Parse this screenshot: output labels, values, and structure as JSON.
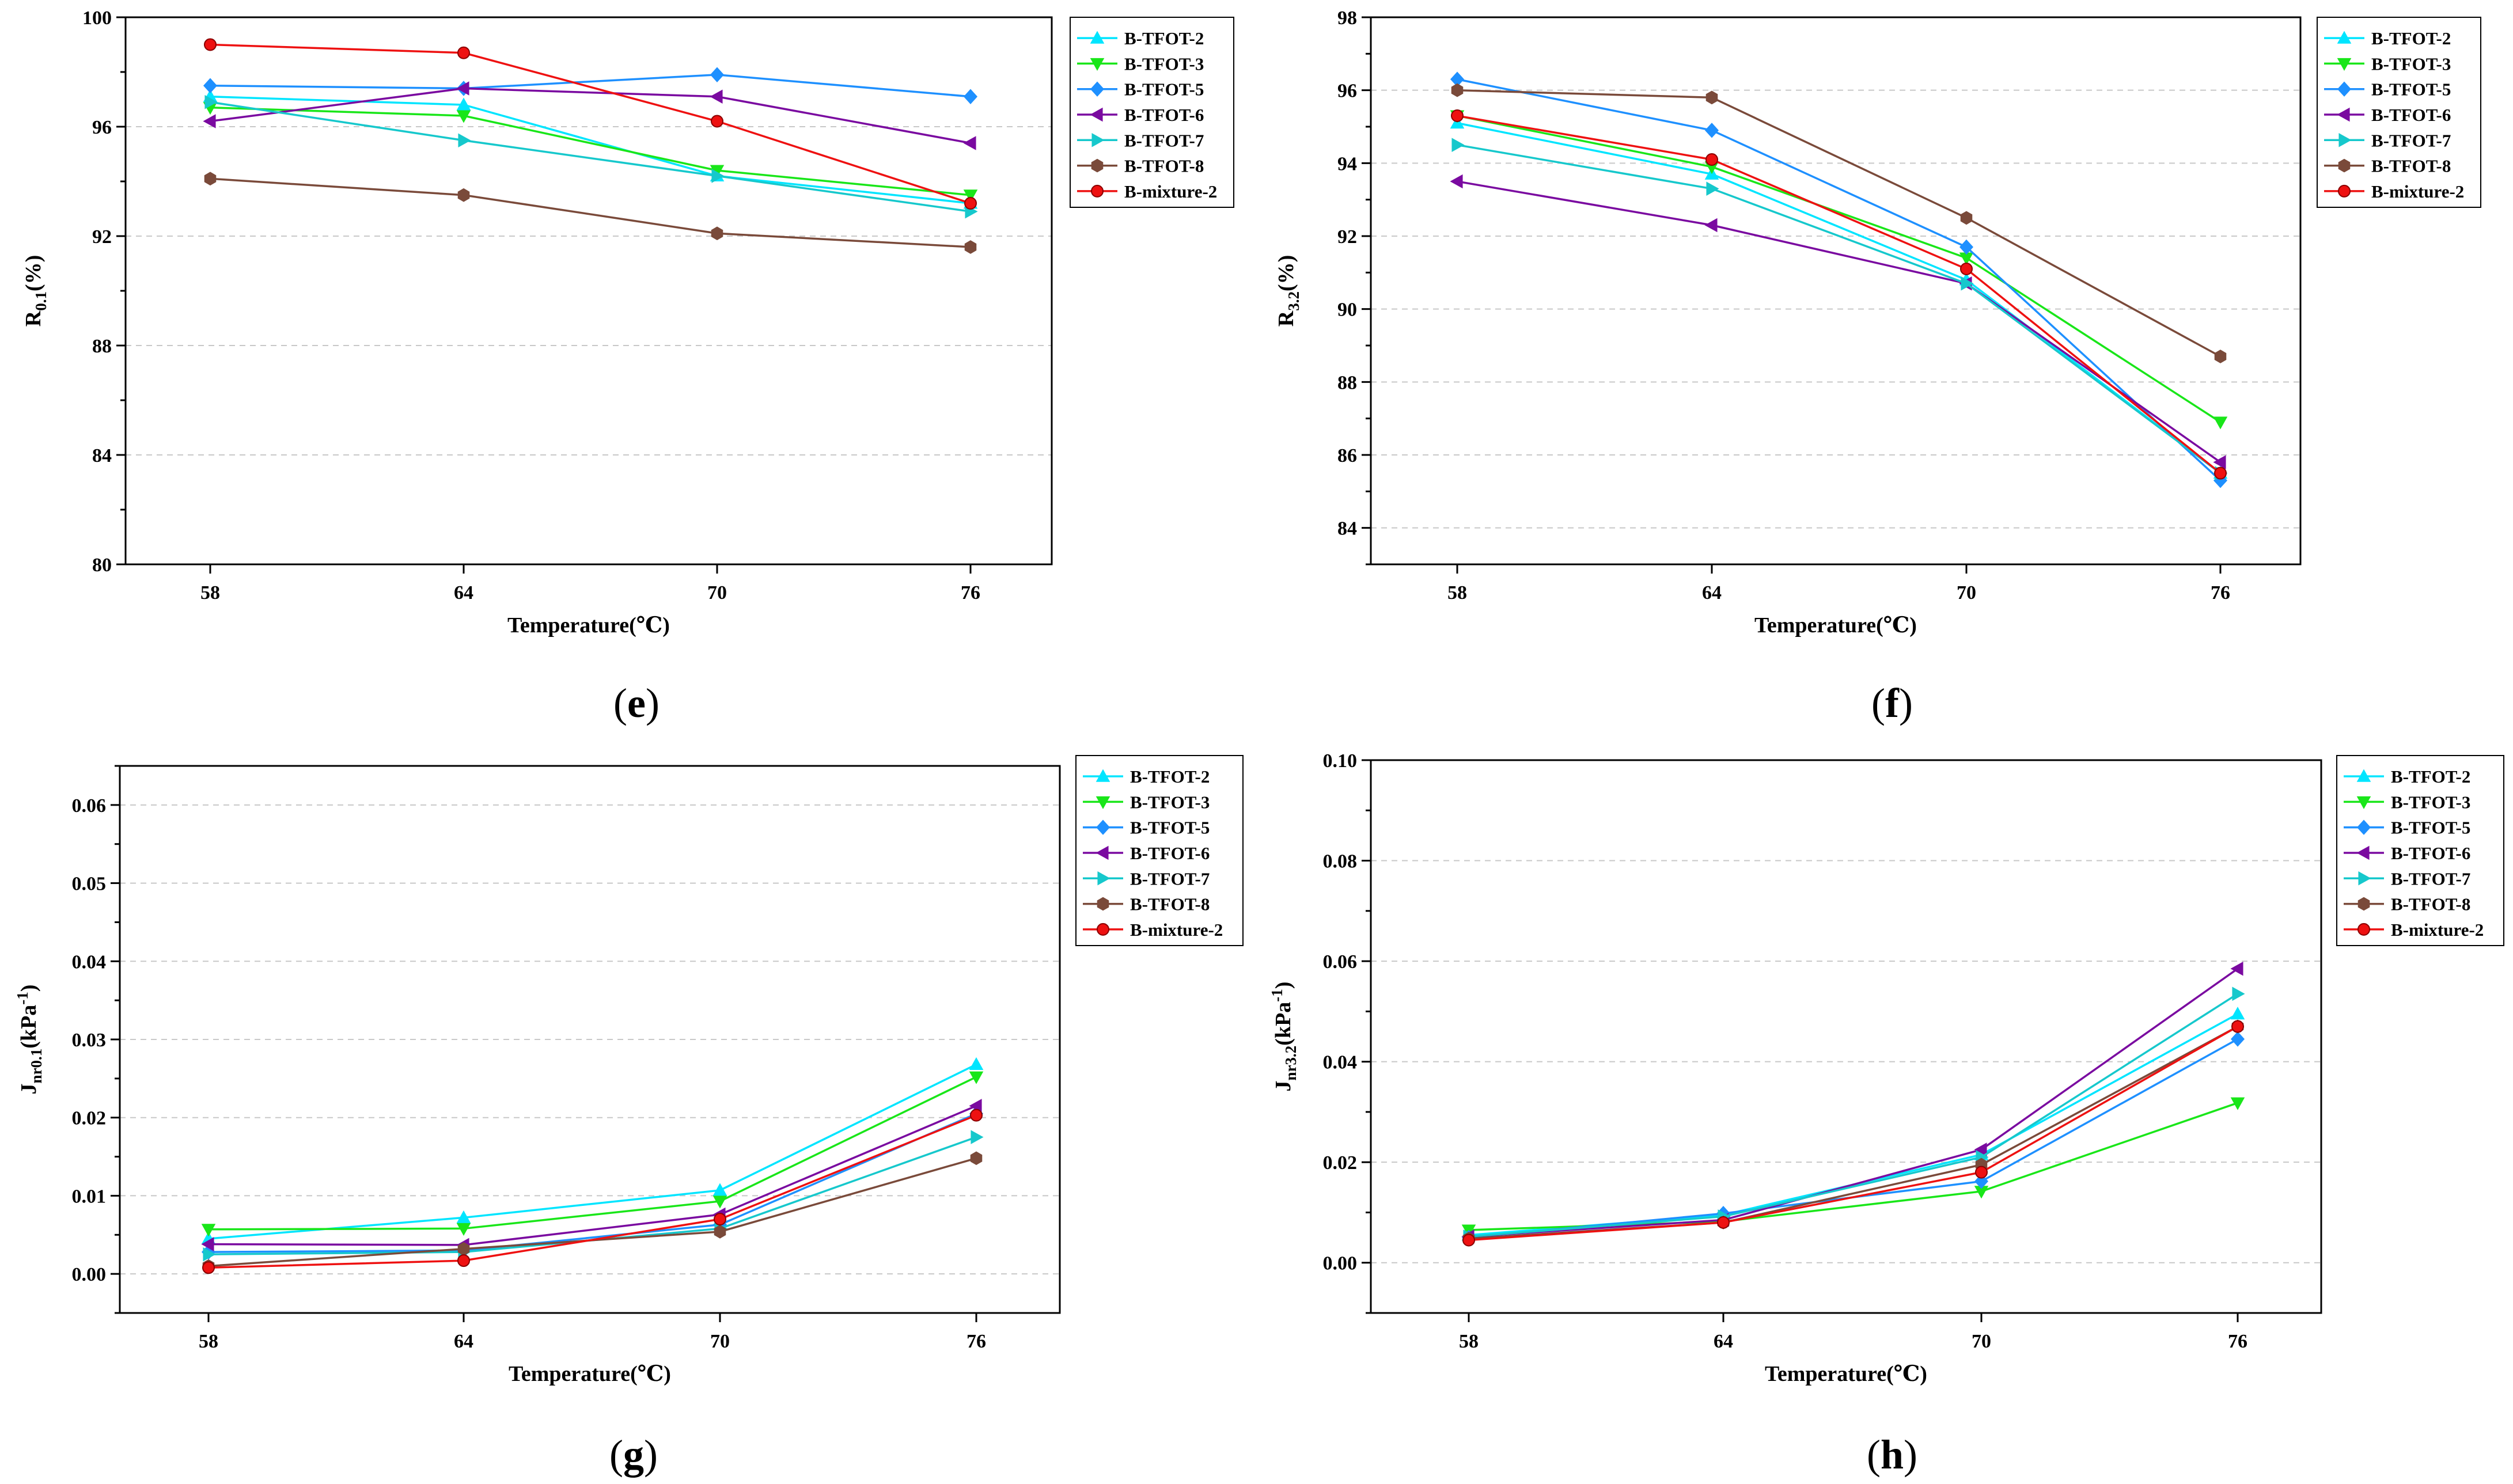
{
  "figure": {
    "colors": {
      "B-TFOT-2": "#00e5ff",
      "B-TFOT-3": "#19e619",
      "B-TFOT-5": "#1e90ff",
      "B-TFOT-6": "#7a0aa0",
      "B-TFOT-7": "#16c8cc",
      "B-TFOT-8": "#7a4a3a",
      "B-mixture-2": "#ee1111"
    },
    "markers": {
      "B-TFOT-2": "triangle-up",
      "B-TFOT-3": "triangle-down",
      "B-TFOT-5": "diamond",
      "B-TFOT-6": "triangle-left",
      "B-TFOT-7": "triangle-right",
      "B-TFOT-8": "hexagon",
      "B-mixture-2": "circle"
    }
  },
  "chart_data": [
    {
      "id": "e",
      "panel_label": "(e)",
      "type": "line",
      "x": [
        58,
        64,
        70,
        76
      ],
      "xlabel": "Temperature(℃)",
      "ylabel": "R0.1(%)",
      "ylabel_main": "R",
      "ylabel_sub": "0.1",
      "ylabel_tail": "(%)",
      "ylabel_sup": "",
      "ylabel_tail2": "",
      "ylim": [
        80,
        100
      ],
      "yticks": [
        80,
        84,
        88,
        92,
        96,
        100
      ],
      "ytick_labels": [
        "80",
        "84",
        "88",
        "92",
        "96",
        "100"
      ],
      "legend": "top-right",
      "series": [
        {
          "name": "B-TFOT-2",
          "values": [
            97.1,
            96.8,
            94.2,
            93.2
          ]
        },
        {
          "name": "B-TFOT-3",
          "values": [
            96.7,
            96.4,
            94.4,
            93.5
          ]
        },
        {
          "name": "B-TFOT-5",
          "values": [
            97.5,
            97.4,
            97.9,
            97.1
          ]
        },
        {
          "name": "B-TFOT-6",
          "values": [
            96.2,
            97.4,
            97.1,
            95.4
          ]
        },
        {
          "name": "B-TFOT-7",
          "values": [
            96.9,
            95.5,
            94.2,
            92.9
          ]
        },
        {
          "name": "B-TFOT-8",
          "values": [
            94.1,
            93.5,
            92.1,
            91.6
          ]
        },
        {
          "name": "B-mixture-2",
          "values": [
            99.0,
            98.7,
            96.2,
            93.2
          ]
        }
      ]
    },
    {
      "id": "f",
      "panel_label": "(f)",
      "type": "line",
      "x": [
        58,
        64,
        70,
        76
      ],
      "xlabel": "Temperature(℃)",
      "ylabel": "R3.2(%)",
      "ylabel_main": "R",
      "ylabel_sub": "3.2",
      "ylabel_tail": "(%)",
      "ylabel_sup": "",
      "ylabel_tail2": "",
      "ylim": [
        83,
        98
      ],
      "yticks": [
        84,
        86,
        88,
        90,
        92,
        94,
        96,
        98
      ],
      "ytick_labels": [
        "84",
        "86",
        "88",
        "90",
        "92",
        "94",
        "96",
        "98"
      ],
      "legend": "top-right",
      "series": [
        {
          "name": "B-TFOT-2",
          "values": [
            95.1,
            93.7,
            90.8,
            85.5
          ]
        },
        {
          "name": "B-TFOT-3",
          "values": [
            95.3,
            93.9,
            91.4,
            86.9
          ]
        },
        {
          "name": "B-TFOT-5",
          "values": [
            96.3,
            94.9,
            91.7,
            85.3
          ]
        },
        {
          "name": "B-TFOT-6",
          "values": [
            93.5,
            92.3,
            90.7,
            85.8
          ]
        },
        {
          "name": "B-TFOT-7",
          "values": [
            94.5,
            93.3,
            90.7,
            85.5
          ]
        },
        {
          "name": "B-TFOT-8",
          "values": [
            96.0,
            95.8,
            92.5,
            88.7
          ]
        },
        {
          "name": "B-mixture-2",
          "values": [
            95.3,
            94.1,
            91.1,
            85.5
          ]
        }
      ]
    },
    {
      "id": "g",
      "panel_label": "(g)",
      "type": "line",
      "x": [
        58,
        64,
        70,
        76
      ],
      "xlabel": "Temperature(℃)",
      "ylabel": "Jnr0.1(kPa-1)",
      "ylabel_main": "J",
      "ylabel_sub": "nr0.1",
      "ylabel_tail": "(kPa",
      "ylabel_sup": "-1",
      "ylabel_tail2": ")",
      "ylim": [
        -0.005,
        0.065
      ],
      "yticks": [
        0.0,
        0.01,
        0.02,
        0.03,
        0.04,
        0.05,
        0.06
      ],
      "ytick_labels": [
        "0.00",
        "0.01",
        "0.02",
        "0.03",
        "0.04",
        "0.05",
        "0.06"
      ],
      "legend": "top-right",
      "series": [
        {
          "name": "B-TFOT-2",
          "values": [
            0.0045,
            0.0072,
            0.0107,
            0.0268
          ]
        },
        {
          "name": "B-TFOT-3",
          "values": [
            0.0057,
            0.0058,
            0.0093,
            0.0252
          ]
        },
        {
          "name": "B-TFOT-5",
          "values": [
            0.0028,
            0.003,
            0.0063,
            0.0205
          ]
        },
        {
          "name": "B-TFOT-6",
          "values": [
            0.0038,
            0.0037,
            0.0076,
            0.0215
          ]
        },
        {
          "name": "B-TFOT-7",
          "values": [
            0.0025,
            0.0028,
            0.0058,
            0.0175
          ]
        },
        {
          "name": "B-TFOT-8",
          "values": [
            0.001,
            0.0032,
            0.0054,
            0.0148
          ]
        },
        {
          "name": "B-mixture-2",
          "values": [
            0.0008,
            0.0017,
            0.007,
            0.0203
          ]
        }
      ]
    },
    {
      "id": "h",
      "panel_label": "(h)",
      "type": "line",
      "x": [
        58,
        64,
        70,
        76
      ],
      "xlabel": "Temperature(℃)",
      "ylabel": "Jnr3.2(kPa-1)",
      "ylabel_main": "J",
      "ylabel_sub": "nr3.2",
      "ylabel_tail": "(kPa",
      "ylabel_sup": "-1",
      "ylabel_tail2": ")",
      "ylim": [
        -0.01,
        0.1
      ],
      "yticks": [
        0.0,
        0.02,
        0.04,
        0.06,
        0.08,
        0.1
      ],
      "ytick_labels": [
        "0.00",
        "0.02",
        "0.04",
        "0.06",
        "0.08",
        "0.10"
      ],
      "legend": "top-right",
      "series": [
        {
          "name": "B-TFOT-2",
          "values": [
            0.0055,
            0.0095,
            0.0215,
            0.0495
          ]
        },
        {
          "name": "B-TFOT-3",
          "values": [
            0.0065,
            0.0082,
            0.0142,
            0.0318
          ]
        },
        {
          "name": "B-TFOT-5",
          "values": [
            0.005,
            0.0098,
            0.0162,
            0.0445
          ]
        },
        {
          "name": "B-TFOT-6",
          "values": [
            0.0052,
            0.0085,
            0.0225,
            0.0585
          ]
        },
        {
          "name": "B-TFOT-7",
          "values": [
            0.0052,
            0.0092,
            0.021,
            0.0535
          ]
        },
        {
          "name": "B-TFOT-8",
          "values": [
            0.0048,
            0.008,
            0.0195,
            0.047
          ]
        },
        {
          "name": "B-mixture-2",
          "values": [
            0.0045,
            0.008,
            0.018,
            0.047
          ]
        }
      ]
    }
  ]
}
